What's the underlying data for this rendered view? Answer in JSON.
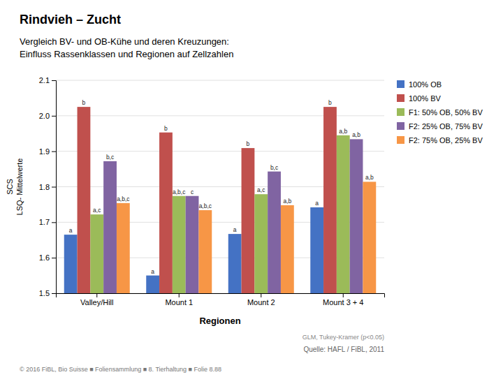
{
  "chart_data": {
    "type": "bar",
    "title": "Rindvieh – Zucht",
    "subtitle": "Vergleich BV- und OB-Kühe und deren Kreuzungen:\nEinfluss Rassenklassen und Regionen auf Zellzahlen",
    "categories": [
      "Valley/Hill",
      "Mount 1",
      "Mount 2",
      "Mount 3 + 4"
    ],
    "series": [
      {
        "name": "100% OB",
        "color": "#4472c4",
        "values": [
          1.665,
          1.55,
          1.667,
          1.742
        ],
        "annotations": [
          "a",
          "a",
          "a",
          "a"
        ]
      },
      {
        "name": "100% BV",
        "color": "#c0504d",
        "values": [
          2.025,
          1.953,
          1.909,
          2.025
        ],
        "annotations": [
          "b",
          "b",
          "b",
          "b"
        ]
      },
      {
        "name": "F1: 50% OB, 50% BV",
        "color": "#9bbb59",
        "values": [
          1.722,
          1.774,
          1.779,
          1.945
        ],
        "annotations": [
          "a,c",
          "a,b,c",
          "a,c",
          "a,b"
        ]
      },
      {
        "name": "F2: 25% OB, 75% BV",
        "color": "#8064a2",
        "values": [
          1.872,
          1.774,
          1.843,
          1.934
        ],
        "annotations": [
          "b,c",
          "c",
          "b,c",
          "a,b"
        ]
      },
      {
        "name": "F2: 75% OB, 25% BV",
        "color": "#f79646",
        "values": [
          1.754,
          1.734,
          1.748,
          1.814
        ],
        "annotations": [
          "a,b,c",
          "a,b,c",
          "a,b",
          "a,b"
        ]
      }
    ],
    "ylim": [
      1.5,
      2.1
    ],
    "yticks": [
      1.5,
      1.6,
      1.7,
      1.8,
      1.9,
      {
        "value": 2.0,
        "label": "2.0"
      },
      2.1
    ],
    "ylabel": "SCS\nLSQ- Mittelwerte",
    "xlabel": "Regionen",
    "note": "GLM, Tukey-Kramer (p<0.05)",
    "source": "Quelle: HAFL / FiBL, 2011",
    "footer": "© 2016 FiBL, Bio Suisse  ■  Foliensammlung  ■  8. Tierhaltung  ■  Folie 8.88",
    "grid": true,
    "legend": "right"
  }
}
